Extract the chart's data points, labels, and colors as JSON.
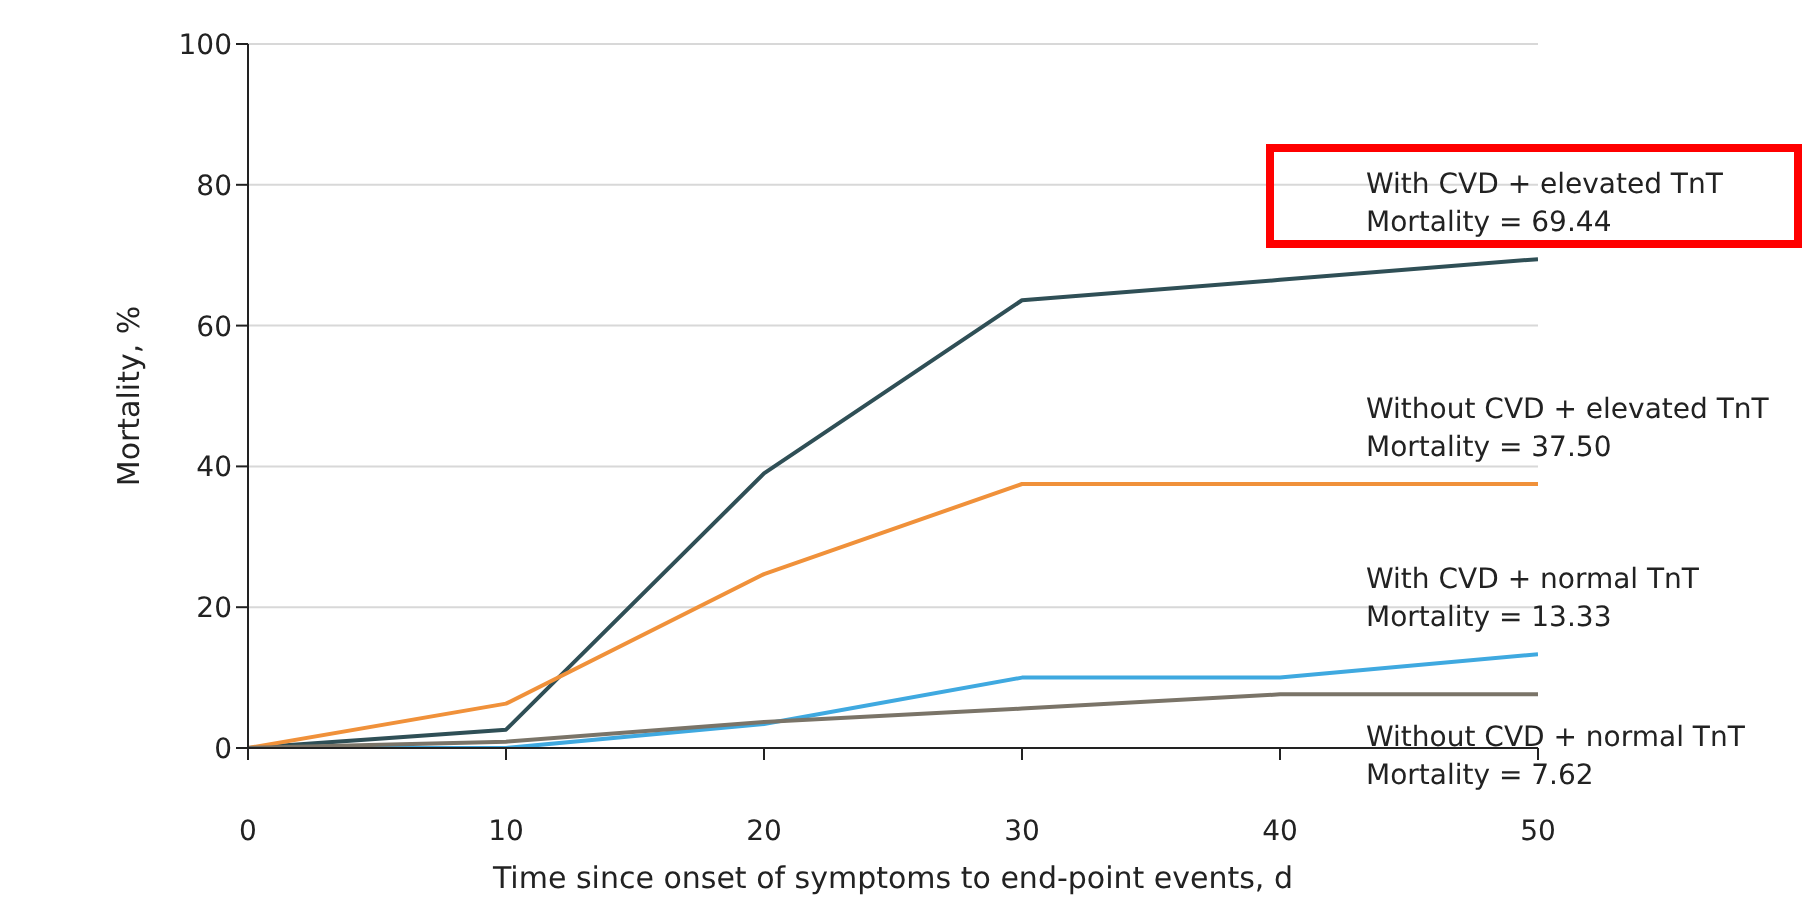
{
  "chart_data": {
    "type": "line",
    "xlabel": "Time since onset of symptoms to end-point events, d",
    "ylabel": "Mortality, %",
    "x": [
      0,
      10,
      20,
      30,
      40,
      50
    ],
    "series": [
      {
        "name": "With CVD + elevated TnT",
        "color": "#2f4f56",
        "values": [
          0,
          2.6,
          39,
          63.6,
          66.5,
          69.44
        ]
      },
      {
        "name": "Without CVD + elevated TnT",
        "color": "#f0913a",
        "values": [
          0,
          6.3,
          24.7,
          37.5,
          37.5,
          37.5
        ]
      },
      {
        "name": "With CVD + normal TnT",
        "color": "#3fa9e0",
        "values": [
          0,
          0,
          3.4,
          10,
          10,
          13.33
        ]
      },
      {
        "name": "Without CVD + normal TnT",
        "color": "#7a7468",
        "values": [
          0,
          0.9,
          3.7,
          5.6,
          7.62,
          7.62
        ]
      }
    ],
    "annotations": [
      "Mortality = 69.44",
      "Mortality = 37.50",
      "Mortality = 13.33",
      "Mortality = 7.62"
    ],
    "xlim": [
      0,
      50
    ],
    "xticks": [
      0,
      10,
      20,
      30,
      40,
      50
    ],
    "ylim": [
      0,
      100
    ],
    "yticks": [
      0,
      20,
      40,
      60,
      80,
      100
    ],
    "grid": "y",
    "legend": false,
    "marker": "none",
    "line_style": "solid"
  }
}
